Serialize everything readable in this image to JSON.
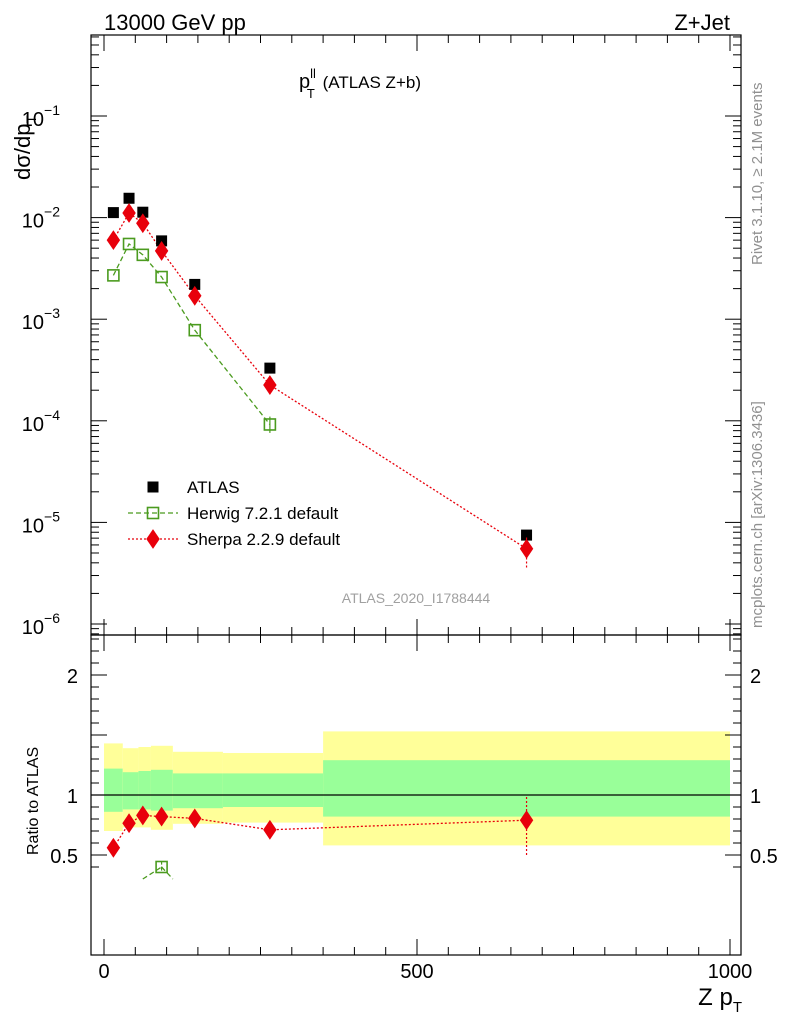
{
  "header": {
    "left": "13000 GeV pp",
    "right": "Z+Jet"
  },
  "side_labels": {
    "upper": "Rivet 3.1.10, ≥ 2.1M events",
    "lower": "mcplots.cern.ch [arXiv:1306.3436]"
  },
  "watermark": "ATLAS_2020_I1788444",
  "chart_data": [
    {
      "type": "scatter",
      "panel": "main",
      "title_main": "p",
      "title_sup": "ll",
      "title_sub": "T",
      "title_rest": " (ATLAS Z+b)",
      "ylabel_main": "dσ/dp",
      "ylabel_sub": "T",
      "yscale": "log",
      "ylim": [
        8e-07,
        0.7
      ],
      "xlim": [
        -25,
        1000
      ],
      "yticks": [
        {
          "value": 0.1,
          "base": "10",
          "exp": "−1"
        },
        {
          "value": 0.01,
          "base": "10",
          "exp": "−2"
        },
        {
          "value": 0.001,
          "base": "10",
          "exp": "−3"
        },
        {
          "value": 0.0001,
          "base": "10",
          "exp": "−4"
        },
        {
          "value": 1e-05,
          "base": "10",
          "exp": "−5"
        },
        {
          "value": 1e-06,
          "base": "10",
          "exp": "−6"
        }
      ],
      "legend_position": "lower-left",
      "series": [
        {
          "name": "ATLAS",
          "marker": "filled-square",
          "color": "#000000",
          "points": [
            {
              "x": 15,
              "y": 0.0112
            },
            {
              "x": 40,
              "y": 0.0155
            },
            {
              "x": 62,
              "y": 0.0113
            },
            {
              "x": 92,
              "y": 0.0059
            },
            {
              "x": 145,
              "y": 0.0022
            },
            {
              "x": 265,
              "y": 0.00033
            },
            {
              "x": 675,
              "y": 7.5e-06
            }
          ]
        },
        {
          "name": "Herwig 7.2.1 default",
          "marker": "open-square",
          "line": "dashed",
          "color": "#4b9b1f",
          "points": [
            {
              "x": 15,
              "y": 0.0027
            },
            {
              "x": 40,
              "y": 0.0055
            },
            {
              "x": 62,
              "y": 0.0043
            },
            {
              "x": 92,
              "y": 0.0026
            },
            {
              "x": 145,
              "y": 0.00078
            },
            {
              "x": 265,
              "y": 9.2e-05,
              "err_lo": 7.6e-05,
              "err_hi": 0.00011
            }
          ]
        },
        {
          "name": "Sherpa 2.2.9 default",
          "marker": "filled-diamond",
          "line": "dotted",
          "color": "#e8000b",
          "points": [
            {
              "x": 15,
              "y": 0.006
            },
            {
              "x": 40,
              "y": 0.0111
            },
            {
              "x": 62,
              "y": 0.0088
            },
            {
              "x": 92,
              "y": 0.0047
            },
            {
              "x": 145,
              "y": 0.0017
            },
            {
              "x": 265,
              "y": 0.000225
            },
            {
              "x": 675,
              "y": 5.5e-06,
              "err_lo": 3.6e-06,
              "err_hi": 7.4e-06
            }
          ]
        }
      ]
    },
    {
      "type": "scatter",
      "panel": "ratio",
      "ylabel": "Ratio to ATLAS",
      "xlabel_main": "Z p",
      "xlabel_sub": "T",
      "ylim": [
        0.35,
        2.35
      ],
      "xlim": [
        -25,
        1000
      ],
      "yticks": [
        0.5,
        1,
        2
      ],
      "ytick_labels": [
        "0.5",
        "1",
        "2"
      ],
      "xticks": [
        0,
        500,
        1000
      ],
      "xtick_labels": [
        "0",
        "500",
        "1000"
      ],
      "bands": [
        {
          "x0": 0,
          "x1": 30,
          "outer": [
            0.7,
            1.43
          ],
          "inner": [
            0.86,
            1.22
          ]
        },
        {
          "x0": 30,
          "x1": 55,
          "outer": [
            0.73,
            1.39
          ],
          "inner": [
            0.88,
            1.19
          ]
        },
        {
          "x0": 55,
          "x1": 75,
          "outer": [
            0.73,
            1.4
          ],
          "inner": [
            0.88,
            1.2
          ]
        },
        {
          "x0": 75,
          "x1": 110,
          "outer": [
            0.71,
            1.41
          ],
          "inner": [
            0.87,
            1.21
          ]
        },
        {
          "x0": 110,
          "x1": 190,
          "outer": [
            0.76,
            1.36
          ],
          "inner": [
            0.89,
            1.18
          ]
        },
        {
          "x0": 190,
          "x1": 350,
          "outer": [
            0.77,
            1.35
          ],
          "inner": [
            0.9,
            1.18
          ]
        },
        {
          "x0": 350,
          "x1": 1000,
          "outer": [
            0.58,
            1.53
          ],
          "inner": [
            0.82,
            1.29
          ]
        }
      ],
      "band_colors": {
        "outer": "#ffff99",
        "inner": "#99ff99"
      },
      "series": [
        {
          "name": "Sherpa 2.2.9 default",
          "color": "#e8000b",
          "points": [
            {
              "x": 15,
              "y": 0.56,
              "err_lo": 0.53,
              "err_hi": 0.59
            },
            {
              "x": 40,
              "y": 0.765,
              "err_lo": 0.74,
              "err_hi": 0.79
            },
            {
              "x": 62,
              "y": 0.83,
              "err_lo": 0.8,
              "err_hi": 0.86
            },
            {
              "x": 92,
              "y": 0.82,
              "err_lo": 0.79,
              "err_hi": 0.85
            },
            {
              "x": 145,
              "y": 0.805,
              "err_lo": 0.76,
              "err_hi": 0.85
            },
            {
              "x": 265,
              "y": 0.71,
              "err_lo": 0.64,
              "err_hi": 0.78
            },
            {
              "x": 675,
              "y": 0.79,
              "err_lo": 0.5,
              "err_hi": 1.0
            }
          ]
        },
        {
          "name": "Herwig 7.2.1 default",
          "color": "#4b9b1f",
          "points": [
            {
              "x": 92,
              "y": 0.4,
              "err_lo": 0.37,
              "err_hi": 0.45
            }
          ],
          "offscale_from": {
            "x": 62,
            "y": 0.3
          },
          "offscale_to": {
            "x": 110,
            "y": 0.3
          }
        }
      ]
    }
  ]
}
